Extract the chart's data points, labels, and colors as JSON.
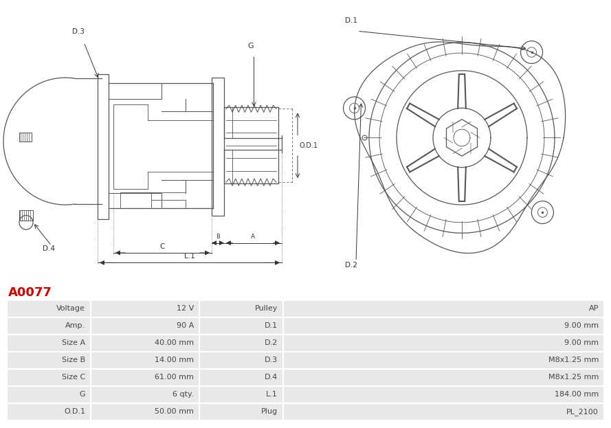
{
  "title": "A0077",
  "title_color": "#cc0000",
  "bg_color": "#ffffff",
  "table_row_bg": "#e8e8e8",
  "table_border_color": "#ffffff",
  "left_col_labels": [
    "Voltage",
    "Amp.",
    "Size A",
    "Size B",
    "Size C",
    "G",
    "O.D.1"
  ],
  "left_col_values": [
    "12 V",
    "90 A",
    "40.00 mm",
    "14.00 mm",
    "61.00 mm",
    "6 qty.",
    "50.00 mm"
  ],
  "right_col_labels": [
    "Pulley",
    "D.1",
    "D.2",
    "D.3",
    "D.4",
    "L.1",
    "Plug"
  ],
  "right_col_values": [
    "AP",
    "9.00 mm",
    "9.00 mm",
    "M8x1.25 mm",
    "M8x1.25 mm",
    "184.00 mm",
    "PL_2100"
  ],
  "line_color": "#555555",
  "dim_color": "#333333",
  "label_fontsize": 7.5
}
